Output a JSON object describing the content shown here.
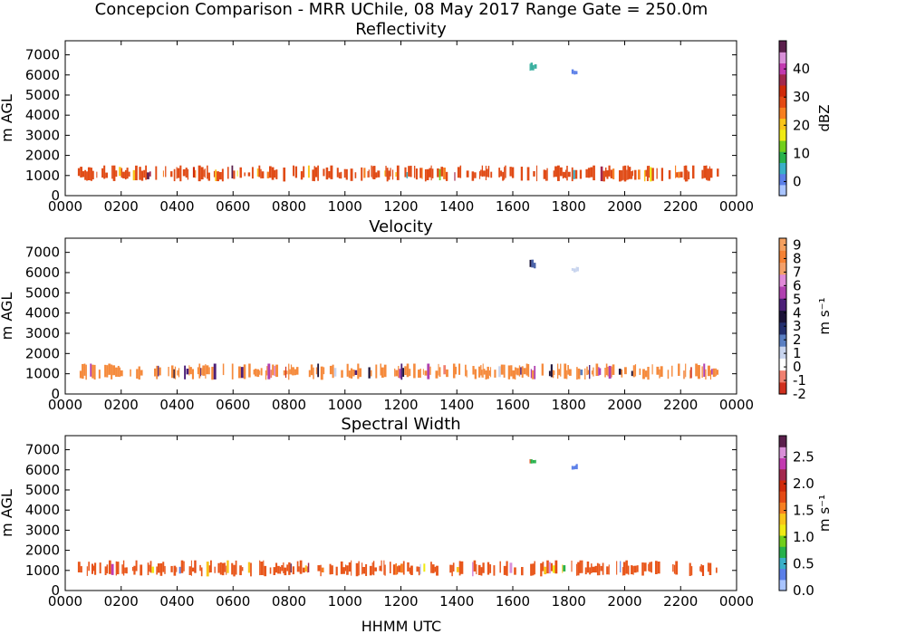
{
  "figure": {
    "suptitle": "Concepcion Comparison - MRR UChile, 08 May 2017 Range Gate = 250.0m",
    "xlabel": "HHMM UTC"
  },
  "chart_data": [
    {
      "type": "heatmap",
      "title": "Reflectivity",
      "ylabel": "m AGL",
      "xlim": [
        0,
        24
      ],
      "ylim": [
        0,
        7700
      ],
      "x_ticks": [
        "0000",
        "0200",
        "0400",
        "0600",
        "0800",
        "1000",
        "1200",
        "1400",
        "1600",
        "1800",
        "2000",
        "2200",
        "0000"
      ],
      "y_ticks": [
        0,
        1000,
        2000,
        3000,
        4000,
        5000,
        6000,
        7000
      ],
      "colorbar": {
        "label": "dBZ",
        "range": [
          -5,
          50
        ],
        "ticks": [
          "0",
          "10",
          "20",
          "30",
          "40"
        ],
        "colors": [
          "#a9c4ff",
          "#5b7fe8",
          "#3ab0c8",
          "#27b24b",
          "#71cf1b",
          "#f0ea14",
          "#f9c41a",
          "#f77f20",
          "#e44a14",
          "#cf2a0a",
          "#a3284e",
          "#c23ab0",
          "#d98fd8",
          "#5b1f4c"
        ]
      },
      "layers": [
        {
          "x_start": 0.45,
          "x_end": 23.4,
          "y_min": 700,
          "y_max": 1500,
          "dominant_color": "#e04b16"
        },
        {
          "x_start": 16.6,
          "x_end": 16.8,
          "y_min": 6200,
          "y_max": 6700,
          "dominant_color": "#3ab0a0"
        },
        {
          "x_start": 18.1,
          "x_end": 18.3,
          "y_min": 6000,
          "y_max": 6300,
          "dominant_color": "#5b7fe8"
        }
      ]
    },
    {
      "type": "heatmap",
      "title": "Velocity",
      "ylabel": "m AGL",
      "xlim": [
        0,
        24
      ],
      "ylim": [
        0,
        7700
      ],
      "x_ticks": [
        "0000",
        "0200",
        "0400",
        "0600",
        "0800",
        "1000",
        "1200",
        "1400",
        "1600",
        "1800",
        "2000",
        "2200",
        "0000"
      ],
      "y_ticks": [
        0,
        1000,
        2000,
        3000,
        4000,
        5000,
        6000,
        7000
      ],
      "colorbar": {
        "label": "m s⁻¹",
        "range": [
          -2,
          9.5
        ],
        "ticks": [
          "-2",
          "-1",
          "0",
          "1",
          "2",
          "3",
          "4",
          "5",
          "6",
          "7",
          "8",
          "9"
        ],
        "colors": [
          "#d0301e",
          "#f08070",
          "#ffffff",
          "#c8d4ee",
          "#5a7fc2",
          "#232f6e",
          "#1a1238",
          "#4c2078",
          "#b040b0",
          "#e08ad8",
          "#f3a06a",
          "#f58234",
          "#f4a060"
        ]
      },
      "layers": [
        {
          "x_start": 0.45,
          "x_end": 23.4,
          "y_min": 700,
          "y_max": 1500,
          "dominant_color": "#f58a3c"
        },
        {
          "x_start": 16.6,
          "x_end": 16.8,
          "y_min": 6200,
          "y_max": 6700,
          "dominant_color": "#4a62a8"
        },
        {
          "x_start": 18.1,
          "x_end": 18.3,
          "y_min": 6000,
          "y_max": 6300,
          "dominant_color": "#c8d4ee"
        }
      ]
    },
    {
      "type": "heatmap",
      "title": "Spectral Width",
      "ylabel": "m AGL",
      "xlim": [
        0,
        24
      ],
      "ylim": [
        0,
        7700
      ],
      "x_ticks": [
        "0000",
        "0200",
        "0400",
        "0600",
        "0800",
        "1000",
        "1200",
        "1400",
        "1600",
        "1800",
        "2000",
        "2200",
        "0000"
      ],
      "y_ticks": [
        0,
        1000,
        2000,
        3000,
        4000,
        5000,
        6000,
        7000
      ],
      "colorbar": {
        "label": "m s⁻¹",
        "range": [
          0,
          2.9
        ],
        "ticks": [
          "0.0",
          "0.5",
          "1.0",
          "1.5",
          "2.0",
          "2.5"
        ],
        "colors": [
          "#a9c4ff",
          "#5b7fe8",
          "#3ab0c8",
          "#27b24b",
          "#71cf1b",
          "#f0ea14",
          "#f9c41a",
          "#f77f20",
          "#e44a14",
          "#cf2a0a",
          "#a3284e",
          "#c23ab0",
          "#d98fd8",
          "#5b1f4c"
        ]
      },
      "layers": [
        {
          "x_start": 0.45,
          "x_end": 23.4,
          "y_min": 700,
          "y_max": 1500,
          "dominant_color": "#e8561a"
        },
        {
          "x_start": 16.6,
          "x_end": 16.8,
          "y_min": 6200,
          "y_max": 6700,
          "dominant_color": "#27b24b"
        },
        {
          "x_start": 18.1,
          "x_end": 18.3,
          "y_min": 6000,
          "y_max": 6300,
          "dominant_color": "#5b7fe8"
        }
      ]
    }
  ]
}
